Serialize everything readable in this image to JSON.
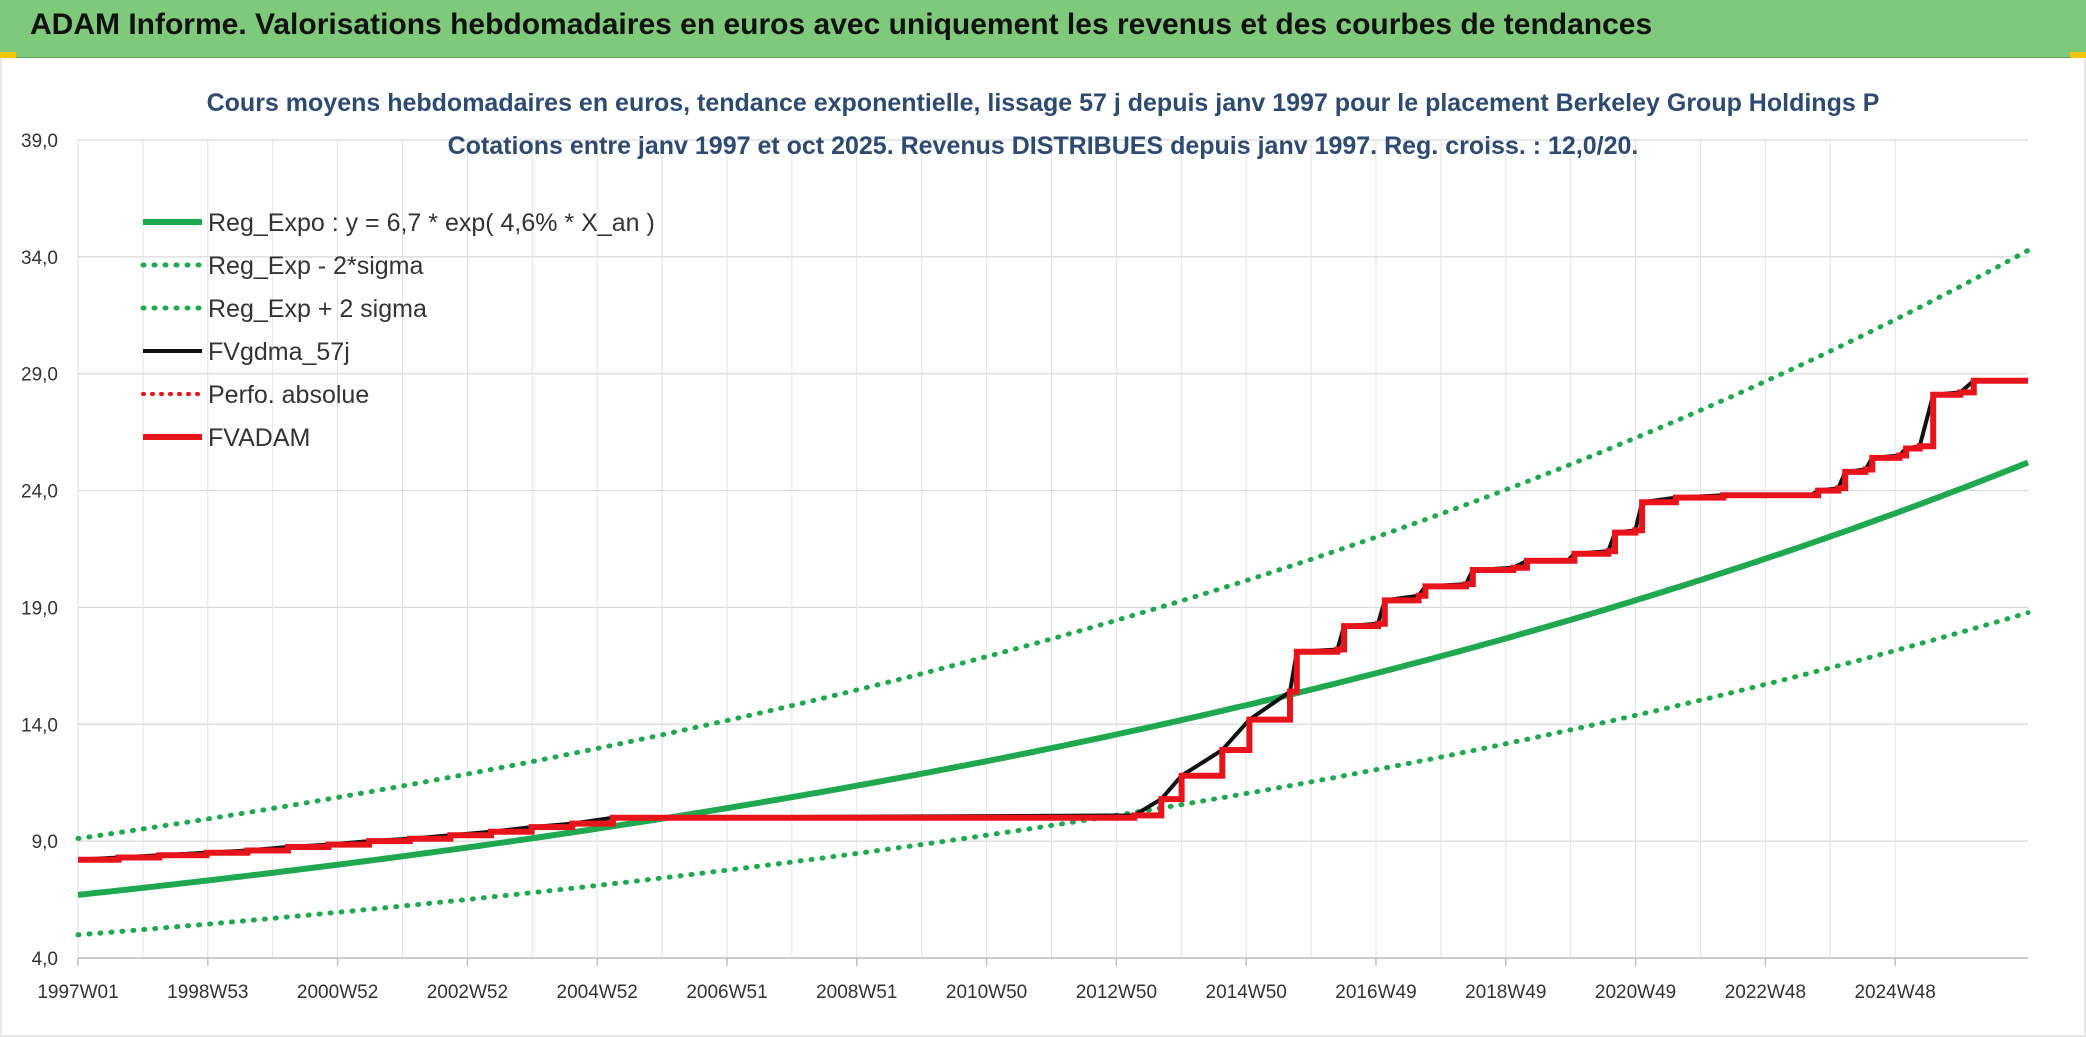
{
  "banner": {
    "title": "ADAM Informe. Valorisations hebdomadaires en euros avec uniquement les revenus et des courbes de tendances"
  },
  "chart_data": {
    "type": "line",
    "title_line1": "Cours moyens hebdomadaires en euros, tendance exponentielle, lissage 57 j depuis janv 1997 pour le placement Berkeley Group Holdings P",
    "title_line2": "Cotations entre janv 1997 et oct 2025. Revenus DISTRIBUES depuis janv 1997. Reg. croiss. : 12,0/20.",
    "x_tick_labels": [
      "1997W01",
      "1998W53",
      "2000W52",
      "2002W52",
      "2004W52",
      "2006W51",
      "2008W51",
      "2010W50",
      "2012W50",
      "2014W50",
      "2016W49",
      "2018W49",
      "2020W49",
      "2022W48",
      "2024W48"
    ],
    "y_ticks": [
      "4,0",
      "9,0",
      "14,0",
      "19,0",
      "24,0",
      "29,0",
      "34,0",
      "39,0"
    ],
    "ylim": [
      4,
      39
    ],
    "xlim": [
      1997.0,
      2025.8
    ],
    "grid": true,
    "legend_position": "top-left",
    "colors": {
      "green": "#1fa84f",
      "red": "#e8141b",
      "black": "#111111"
    },
    "regression": {
      "a": 6.7,
      "rate": 0.046,
      "sigma_factor_low": 0.745,
      "sigma_factor_high": 1.36
    },
    "series": [
      {
        "name": "Reg_Expo : y = 6,7 * exp( 4,6% *  X_an )",
        "style": "solid-green",
        "kind": "formula",
        "factor": 1.0
      },
      {
        "name": "Reg_Exp - 2*sigma",
        "style": "dotted-green",
        "kind": "formula",
        "factor": 0.745
      },
      {
        "name": "Reg_Exp + 2 sigma",
        "style": "dotted-green",
        "kind": "formula",
        "factor": 1.36
      },
      {
        "name": "FVgdma_57j",
        "style": "solid-black",
        "kind": "smooth"
      },
      {
        "name": "Perfo. absolue",
        "style": "dotted-red",
        "kind": "none"
      },
      {
        "name": "FVADAM",
        "style": "solid-red",
        "kind": "steps",
        "points": [
          [
            1997.0,
            8.2
          ],
          [
            1997.6,
            8.3
          ],
          [
            1998.2,
            8.4
          ],
          [
            1998.9,
            8.5
          ],
          [
            1999.5,
            8.6
          ],
          [
            2000.1,
            8.75
          ],
          [
            2000.7,
            8.85
          ],
          [
            2001.3,
            9.0
          ],
          [
            2001.9,
            9.1
          ],
          [
            2002.5,
            9.25
          ],
          [
            2003.1,
            9.4
          ],
          [
            2003.7,
            9.6
          ],
          [
            2004.3,
            9.75
          ],
          [
            2004.9,
            10.0
          ],
          [
            2012.6,
            10.1
          ],
          [
            2013.0,
            10.8
          ],
          [
            2013.3,
            11.8
          ],
          [
            2013.9,
            12.9
          ],
          [
            2014.3,
            14.2
          ],
          [
            2014.9,
            15.4
          ],
          [
            2015.0,
            17.1
          ],
          [
            2015.6,
            17.2
          ],
          [
            2015.7,
            18.2
          ],
          [
            2016.2,
            18.3
          ],
          [
            2016.3,
            19.3
          ],
          [
            2016.8,
            19.5
          ],
          [
            2016.9,
            19.9
          ],
          [
            2017.5,
            20.0
          ],
          [
            2017.6,
            20.6
          ],
          [
            2018.2,
            20.7
          ],
          [
            2018.4,
            21.0
          ],
          [
            2019.0,
            21.0
          ],
          [
            2019.1,
            21.3
          ],
          [
            2019.6,
            21.4
          ],
          [
            2019.7,
            22.2
          ],
          [
            2020.0,
            22.3
          ],
          [
            2020.1,
            23.5
          ],
          [
            2020.6,
            23.7
          ],
          [
            2021.3,
            23.8
          ],
          [
            2022.6,
            23.8
          ],
          [
            2022.7,
            24.0
          ],
          [
            2023.0,
            24.1
          ],
          [
            2023.1,
            24.8
          ],
          [
            2023.4,
            24.9
          ],
          [
            2023.5,
            25.4
          ],
          [
            2023.9,
            25.5
          ],
          [
            2024.0,
            25.8
          ],
          [
            2024.2,
            25.9
          ],
          [
            2024.4,
            28.1
          ],
          [
            2024.8,
            28.2
          ],
          [
            2025.0,
            28.7
          ],
          [
            2025.8,
            28.7
          ]
        ]
      }
    ]
  }
}
